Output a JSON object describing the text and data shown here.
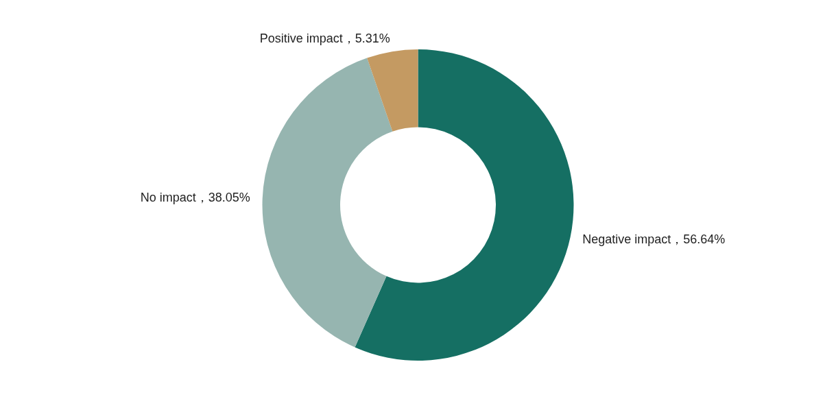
{
  "chart_data": {
    "type": "donut",
    "categories": [
      "Negative impact",
      "No impact",
      "Positive impact"
    ],
    "values": [
      56.64,
      38.05,
      5.31
    ],
    "value_labels": [
      "56.64%",
      "38.05%",
      "5.31%"
    ],
    "colors": [
      "#156f63",
      "#96b5b0",
      "#c49a62"
    ],
    "legend": false
  }
}
